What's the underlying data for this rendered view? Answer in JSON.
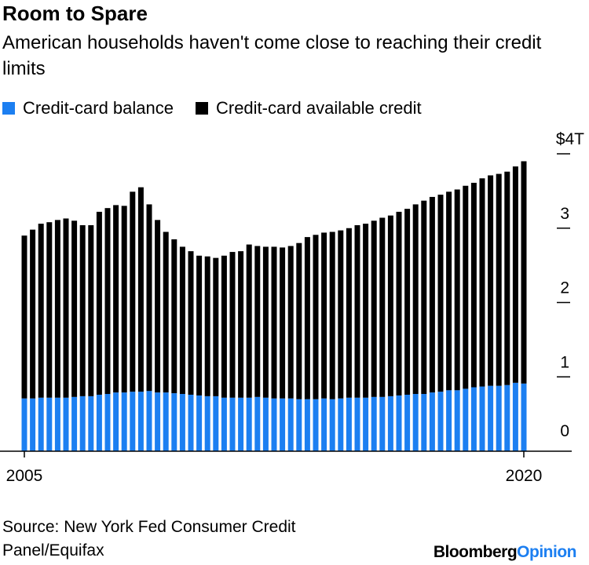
{
  "header": {
    "title": "Room to Spare",
    "subtitle": "American households haven't come close to reaching their credit limits"
  },
  "legend": {
    "balance_label": "Credit-card balance",
    "available_label": "Credit-card available credit"
  },
  "colors": {
    "balance": "#1c7ff1",
    "available": "#000000",
    "axis": "#000000"
  },
  "chart_data": {
    "type": "bar",
    "stacked": true,
    "title": "Room to Spare",
    "subtitle": "American households haven't come close to reaching their credit limits",
    "x_tick_labels": [
      "2005",
      "2020"
    ],
    "y_tick_labels": [
      "0",
      "1",
      "2",
      "3",
      "$4T"
    ],
    "ylim": [
      0,
      4
    ],
    "unit": "trillions of dollars",
    "series": [
      {
        "name": "Credit-card balance",
        "values": [
          0.71,
          0.71,
          0.72,
          0.72,
          0.72,
          0.72,
          0.73,
          0.74,
          0.74,
          0.76,
          0.77,
          0.79,
          0.79,
          0.8,
          0.8,
          0.81,
          0.79,
          0.79,
          0.78,
          0.77,
          0.76,
          0.75,
          0.74,
          0.74,
          0.72,
          0.72,
          0.72,
          0.72,
          0.73,
          0.72,
          0.71,
          0.71,
          0.71,
          0.7,
          0.7,
          0.7,
          0.71,
          0.7,
          0.71,
          0.72,
          0.72,
          0.72,
          0.73,
          0.73,
          0.74,
          0.75,
          0.76,
          0.77,
          0.77,
          0.79,
          0.8,
          0.82,
          0.82,
          0.84,
          0.86,
          0.87,
          0.88,
          0.88,
          0.89,
          0.92,
          0.91
        ]
      },
      {
        "name": "Credit-card available credit",
        "values": [
          2.19,
          2.27,
          2.34,
          2.36,
          2.39,
          2.41,
          2.37,
          2.3,
          2.3,
          2.46,
          2.5,
          2.52,
          2.51,
          2.69,
          2.75,
          2.51,
          2.32,
          2.16,
          2.07,
          1.98,
          1.93,
          1.88,
          1.88,
          1.86,
          1.91,
          1.96,
          1.97,
          2.06,
          2.03,
          2.03,
          2.04,
          2.03,
          2.05,
          2.1,
          2.18,
          2.21,
          2.23,
          2.25,
          2.26,
          2.28,
          2.32,
          2.34,
          2.37,
          2.41,
          2.43,
          2.47,
          2.5,
          2.55,
          2.6,
          2.63,
          2.65,
          2.67,
          2.7,
          2.73,
          2.75,
          2.8,
          2.83,
          2.85,
          2.87,
          2.91,
          2.99
        ]
      }
    ]
  },
  "footer": {
    "source": "Source: New York Fed Consumer Credit Panel/Equifax",
    "brand_main": "Bloomberg",
    "brand_accent": "Opinion"
  }
}
